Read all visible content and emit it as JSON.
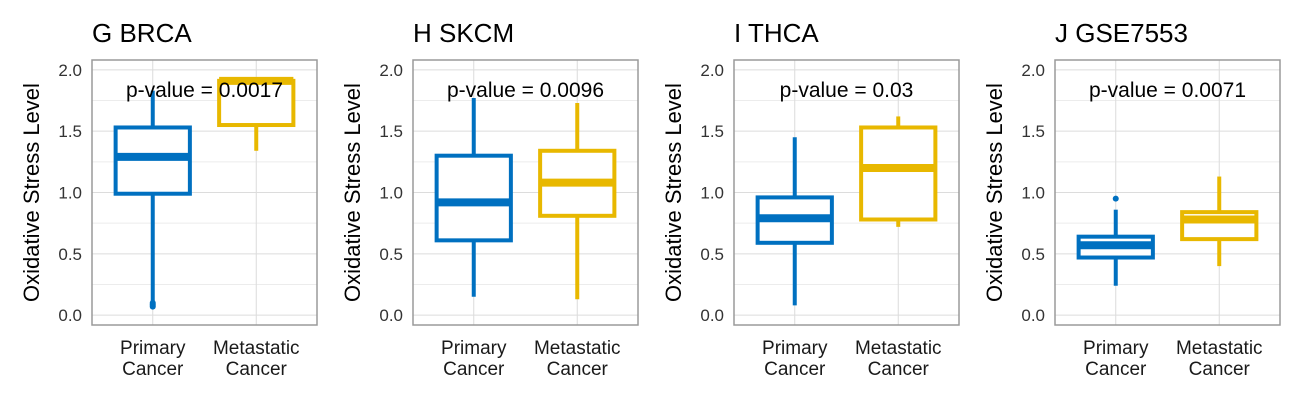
{
  "colors": {
    "primary": "#0070c0",
    "metastatic": "#e8b800",
    "grid": "#dcdcdc",
    "border": "#9a9a9a"
  },
  "chart_data": [
    {
      "type": "box",
      "panel_label": "G",
      "title": "BRCA",
      "ylabel": "Oxidative Stress Level",
      "ylim": [
        -0.08,
        2.08
      ],
      "yticks": [
        "0.0",
        "0.5",
        "1.0",
        "1.5",
        "2.0"
      ],
      "annotation": "p-value = 0.0017",
      "categories": [
        [
          "Primary",
          "Cancer"
        ],
        [
          "Metastatic",
          "Cancer"
        ]
      ],
      "boxes": [
        {
          "group": "Primary Cancer",
          "min": 0.1,
          "q1": 0.99,
          "median": 1.29,
          "q3": 1.53,
          "max": 1.83,
          "outliers": [
            0.07,
            0.08,
            0.09,
            0.1
          ]
        },
        {
          "group": "Metastatic Cancer",
          "min": 1.34,
          "q1": 1.55,
          "median": 1.91,
          "q3": 1.91,
          "max": 1.91,
          "outliers": []
        }
      ]
    },
    {
      "type": "box",
      "panel_label": "H",
      "title": "SKCM",
      "ylabel": "Oxidative Stress Level",
      "ylim": [
        -0.08,
        2.08
      ],
      "yticks": [
        "0.0",
        "0.5",
        "1.0",
        "1.5",
        "2.0"
      ],
      "annotation": "p-value = 0.0096",
      "categories": [
        [
          "Primary",
          "Cancer"
        ],
        [
          "Metastatic",
          "Cancer"
        ]
      ],
      "boxes": [
        {
          "group": "Primary Cancer",
          "min": 0.15,
          "q1": 0.61,
          "median": 0.92,
          "q3": 1.3,
          "max": 1.77,
          "outliers": []
        },
        {
          "group": "Metastatic Cancer",
          "min": 0.13,
          "q1": 0.81,
          "median": 1.08,
          "q3": 1.34,
          "max": 1.73,
          "outliers": []
        }
      ]
    },
    {
      "type": "box",
      "panel_label": "I",
      "title": "THCA",
      "ylabel": "Oxidative Stress Level",
      "ylim": [
        -0.08,
        2.08
      ],
      "yticks": [
        "0.0",
        "0.5",
        "1.0",
        "1.5",
        "2.0"
      ],
      "annotation": "p-value = 0.03",
      "categories": [
        [
          "Primary",
          "Cancer"
        ],
        [
          "Metastatic",
          "Cancer"
        ]
      ],
      "boxes": [
        {
          "group": "Primary Cancer",
          "min": 0.08,
          "q1": 0.59,
          "median": 0.79,
          "q3": 0.96,
          "max": 1.45,
          "outliers": []
        },
        {
          "group": "Metastatic Cancer",
          "min": 0.72,
          "q1": 0.78,
          "median": 1.2,
          "q3": 1.53,
          "max": 1.62,
          "outliers": []
        }
      ]
    },
    {
      "type": "box",
      "panel_label": "J",
      "title": "GSE7553",
      "ylabel": "Oxidative Stress Level",
      "ylim": [
        -0.08,
        2.08
      ],
      "yticks": [
        "0.0",
        "0.5",
        "1.0",
        "1.5",
        "2.0"
      ],
      "annotation": "p-value = 0.0071",
      "categories": [
        [
          "Primary",
          "Cancer"
        ],
        [
          "Metastatic",
          "Cancer"
        ]
      ],
      "boxes": [
        {
          "group": "Primary Cancer",
          "min": 0.24,
          "q1": 0.47,
          "median": 0.57,
          "q3": 0.64,
          "max": 0.86,
          "outliers": [
            0.95
          ]
        },
        {
          "group": "Metastatic Cancer",
          "min": 0.4,
          "q1": 0.62,
          "median": 0.78,
          "q3": 0.84,
          "max": 1.13,
          "outliers": []
        }
      ]
    }
  ]
}
